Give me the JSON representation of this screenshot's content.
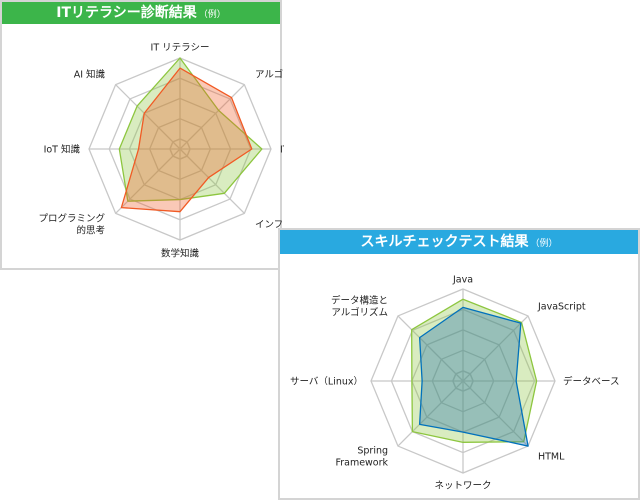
{
  "chart_data": [
    {
      "type": "radar",
      "title": "ITリテラシー診断結果",
      "title_note": "（例）",
      "header_color": "#3cb54a",
      "axes": [
        "IT リテラシー",
        "アルゴリズム",
        "IT 基礎知識",
        "インフラ知識",
        "数学知識",
        "プログラミング\n的思考",
        "IoT 知識",
        "AI 知識"
      ],
      "scale": {
        "min": 0.5,
        "max": 5,
        "rings": [
          1,
          2,
          3,
          4,
          5
        ]
      },
      "grid": true,
      "series": [
        {
          "color": "#8dc63f",
          "fill": "rgba(141,198,63,0.33)",
          "values": [
            5.0,
            3.2,
            4.55,
            3.6,
            3.0,
            4.15,
            3.5,
            3.5
          ]
        },
        {
          "color": "#f15a24",
          "fill": "rgba(241,90,36,0.33)",
          "values": [
            4.5,
            4.1,
            4.05,
            2.5,
            3.6,
            4.6,
            2.55,
            3.0
          ]
        }
      ]
    },
    {
      "type": "radar",
      "title": "スキルチェックテスト結果",
      "title_note": "（例）",
      "header_color": "#29a9e0",
      "axes": [
        "Java",
        "JavaScript",
        "データベース",
        "HTML",
        "ネットワーク",
        "Spring\nFramework",
        "サーバ（Linux）",
        "データ構造と\nアルゴリズム"
      ],
      "scale": {
        "min": 0.5,
        "max": 5,
        "rings": [
          1,
          2,
          3,
          4,
          5
        ]
      },
      "grid": true,
      "series": [
        {
          "color": "#8dc63f",
          "fill": "rgba(141,198,63,0.33)",
          "values": [
            4.5,
            4.55,
            4.1,
            4.7,
            3.5,
            4.0,
            3.0,
            4.05
          ]
        },
        {
          "color": "#0071bc",
          "fill": "rgba(30,110,170,0.35)",
          "values": [
            4.1,
            4.5,
            3.1,
            5.0,
            3.0,
            3.5,
            2.5,
            3.5
          ]
        }
      ]
    }
  ]
}
